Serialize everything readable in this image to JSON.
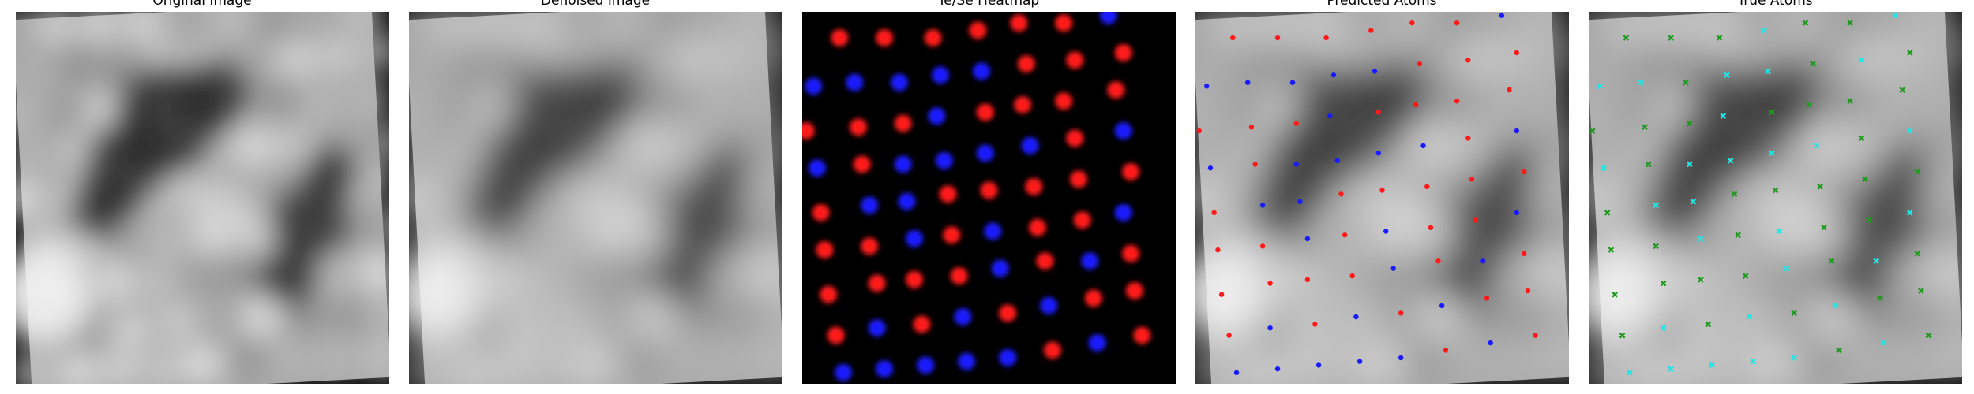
{
  "figure": {
    "panels": [
      {
        "key": "original",
        "title": "Original Image"
      },
      {
        "key": "denoised",
        "title": "Denoised Image"
      },
      {
        "key": "heatmap",
        "title": "Te/Se Heatmap"
      },
      {
        "key": "predicted",
        "title": "Predicted Atoms"
      },
      {
        "key": "true",
        "title": "True Atoms"
      }
    ]
  },
  "colors": {
    "red_atom": "#ff1a1a",
    "blue_atom": "#1a1aff",
    "green_marker": "#1f9a1f",
    "cyan_marker": "#22e5e5",
    "heatmap_bg": "#000000"
  },
  "atoms": {
    "predicted": [
      [
        "r",
        0.1,
        0.07
      ],
      [
        "r",
        0.22,
        0.07
      ],
      [
        "r",
        0.35,
        0.07
      ],
      [
        "r",
        0.47,
        0.05
      ],
      [
        "r",
        0.58,
        0.03
      ],
      [
        "r",
        0.7,
        0.03
      ],
      [
        "b",
        0.82,
        0.01
      ],
      [
        "b",
        0.03,
        0.2
      ],
      [
        "b",
        0.14,
        0.19
      ],
      [
        "b",
        0.26,
        0.19
      ],
      [
        "b",
        0.37,
        0.17
      ],
      [
        "b",
        0.48,
        0.16
      ],
      [
        "r",
        0.6,
        0.14
      ],
      [
        "r",
        0.73,
        0.13
      ],
      [
        "r",
        0.86,
        0.11
      ],
      [
        "r",
        0.01,
        0.32
      ],
      [
        "r",
        0.15,
        0.31
      ],
      [
        "r",
        0.27,
        0.3
      ],
      [
        "b",
        0.36,
        0.28
      ],
      [
        "r",
        0.49,
        0.27
      ],
      [
        "r",
        0.59,
        0.25
      ],
      [
        "r",
        0.7,
        0.24
      ],
      [
        "r",
        0.84,
        0.21
      ],
      [
        "b",
        0.04,
        0.42
      ],
      [
        "r",
        0.16,
        0.41
      ],
      [
        "b",
        0.27,
        0.41
      ],
      [
        "b",
        0.38,
        0.4
      ],
      [
        "b",
        0.49,
        0.38
      ],
      [
        "b",
        0.61,
        0.36
      ],
      [
        "r",
        0.73,
        0.34
      ],
      [
        "b",
        0.86,
        0.32
      ],
      [
        "r",
        0.05,
        0.54
      ],
      [
        "b",
        0.18,
        0.52
      ],
      [
        "b",
        0.28,
        0.51
      ],
      [
        "r",
        0.39,
        0.49
      ],
      [
        "r",
        0.5,
        0.48
      ],
      [
        "r",
        0.62,
        0.47
      ],
      [
        "r",
        0.74,
        0.45
      ],
      [
        "r",
        0.88,
        0.43
      ],
      [
        "r",
        0.06,
        0.64
      ],
      [
        "r",
        0.18,
        0.63
      ],
      [
        "b",
        0.3,
        0.61
      ],
      [
        "r",
        0.4,
        0.6
      ],
      [
        "b",
        0.51,
        0.59
      ],
      [
        "r",
        0.63,
        0.58
      ],
      [
        "r",
        0.75,
        0.56
      ],
      [
        "b",
        0.86,
        0.54
      ],
      [
        "r",
        0.07,
        0.76
      ],
      [
        "r",
        0.2,
        0.73
      ],
      [
        "r",
        0.3,
        0.72
      ],
      [
        "r",
        0.42,
        0.71
      ],
      [
        "b",
        0.53,
        0.69
      ],
      [
        "r",
        0.65,
        0.67
      ],
      [
        "b",
        0.77,
        0.67
      ],
      [
        "r",
        0.88,
        0.65
      ],
      [
        "r",
        0.09,
        0.87
      ],
      [
        "b",
        0.2,
        0.85
      ],
      [
        "r",
        0.32,
        0.84
      ],
      [
        "b",
        0.43,
        0.82
      ],
      [
        "r",
        0.55,
        0.81
      ],
      [
        "b",
        0.66,
        0.79
      ],
      [
        "r",
        0.78,
        0.77
      ],
      [
        "r",
        0.89,
        0.75
      ],
      [
        "b",
        0.11,
        0.97
      ],
      [
        "b",
        0.22,
        0.96
      ],
      [
        "b",
        0.33,
        0.95
      ],
      [
        "b",
        0.44,
        0.94
      ],
      [
        "b",
        0.55,
        0.93
      ],
      [
        "r",
        0.67,
        0.91
      ],
      [
        "b",
        0.79,
        0.89
      ],
      [
        "r",
        0.91,
        0.87
      ]
    ],
    "true": [
      [
        "g",
        0.1,
        0.07
      ],
      [
        "g",
        0.22,
        0.07
      ],
      [
        "g",
        0.35,
        0.07
      ],
      [
        "c",
        0.47,
        0.05
      ],
      [
        "g",
        0.58,
        0.03
      ],
      [
        "g",
        0.7,
        0.03
      ],
      [
        "c",
        0.82,
        0.01
      ],
      [
        "c",
        0.03,
        0.2
      ],
      [
        "c",
        0.14,
        0.19
      ],
      [
        "g",
        0.26,
        0.19
      ],
      [
        "c",
        0.37,
        0.17
      ],
      [
        "c",
        0.48,
        0.16
      ],
      [
        "g",
        0.6,
        0.14
      ],
      [
        "c",
        0.73,
        0.13
      ],
      [
        "g",
        0.86,
        0.11
      ],
      [
        "g",
        0.01,
        0.32
      ],
      [
        "g",
        0.15,
        0.31
      ],
      [
        "g",
        0.27,
        0.3
      ],
      [
        "c",
        0.36,
        0.28
      ],
      [
        "g",
        0.49,
        0.27
      ],
      [
        "g",
        0.59,
        0.25
      ],
      [
        "g",
        0.7,
        0.24
      ],
      [
        "g",
        0.84,
        0.21
      ],
      [
        "c",
        0.04,
        0.42
      ],
      [
        "g",
        0.16,
        0.41
      ],
      [
        "c",
        0.27,
        0.41
      ],
      [
        "c",
        0.38,
        0.4
      ],
      [
        "c",
        0.49,
        0.38
      ],
      [
        "c",
        0.61,
        0.36
      ],
      [
        "g",
        0.73,
        0.34
      ],
      [
        "c",
        0.86,
        0.32
      ],
      [
        "g",
        0.05,
        0.54
      ],
      [
        "c",
        0.18,
        0.52
      ],
      [
        "c",
        0.28,
        0.51
      ],
      [
        "g",
        0.39,
        0.49
      ],
      [
        "g",
        0.5,
        0.48
      ],
      [
        "g",
        0.62,
        0.47
      ],
      [
        "g",
        0.74,
        0.45
      ],
      [
        "g",
        0.88,
        0.43
      ],
      [
        "g",
        0.06,
        0.64
      ],
      [
        "g",
        0.18,
        0.63
      ],
      [
        "c",
        0.3,
        0.61
      ],
      [
        "g",
        0.4,
        0.6
      ],
      [
        "c",
        0.51,
        0.59
      ],
      [
        "g",
        0.63,
        0.58
      ],
      [
        "g",
        0.75,
        0.56
      ],
      [
        "c",
        0.86,
        0.54
      ],
      [
        "g",
        0.07,
        0.76
      ],
      [
        "g",
        0.2,
        0.73
      ],
      [
        "g",
        0.3,
        0.72
      ],
      [
        "g",
        0.42,
        0.71
      ],
      [
        "c",
        0.53,
        0.69
      ],
      [
        "g",
        0.65,
        0.67
      ],
      [
        "c",
        0.77,
        0.67
      ],
      [
        "g",
        0.88,
        0.65
      ],
      [
        "g",
        0.09,
        0.87
      ],
      [
        "c",
        0.2,
        0.85
      ],
      [
        "g",
        0.32,
        0.84
      ],
      [
        "c",
        0.43,
        0.82
      ],
      [
        "g",
        0.55,
        0.81
      ],
      [
        "c",
        0.66,
        0.79
      ],
      [
        "g",
        0.78,
        0.77
      ],
      [
        "g",
        0.89,
        0.75
      ],
      [
        "c",
        0.11,
        0.97
      ],
      [
        "c",
        0.22,
        0.96
      ],
      [
        "c",
        0.33,
        0.95
      ],
      [
        "c",
        0.44,
        0.94
      ],
      [
        "c",
        0.55,
        0.93
      ],
      [
        "g",
        0.67,
        0.91
      ],
      [
        "c",
        0.79,
        0.89
      ],
      [
        "g",
        0.91,
        0.87
      ]
    ]
  }
}
